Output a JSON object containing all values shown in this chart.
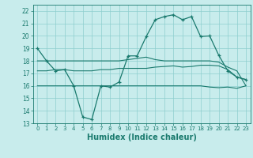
{
  "xlabel": "Humidex (Indice chaleur)",
  "bg_color": "#c8ecec",
  "line_color": "#1a7a6e",
  "grid_color": "#8ecece",
  "x_ticks": [
    0,
    1,
    2,
    3,
    4,
    5,
    6,
    7,
    8,
    9,
    10,
    11,
    12,
    13,
    14,
    15,
    16,
    17,
    18,
    19,
    20,
    21,
    22,
    23
  ],
  "y_ticks": [
    13,
    14,
    15,
    16,
    17,
    18,
    19,
    20,
    21,
    22
  ],
  "ylim": [
    13,
    22.5
  ],
  "xlim": [
    -0.5,
    23.5
  ],
  "line1": [
    19,
    18,
    17.2,
    17.3,
    16.0,
    13.5,
    13.3,
    16.0,
    15.9,
    16.3,
    18.4,
    18.4,
    19.95,
    21.3,
    21.55,
    21.7,
    21.3,
    21.55,
    19.95,
    20.0,
    18.45,
    17.2,
    16.7,
    16.5
  ],
  "line2": [
    18,
    18,
    18,
    18,
    18,
    18,
    18,
    18,
    18,
    18,
    18.1,
    18.2,
    18.3,
    18.1,
    18.0,
    18.0,
    18.0,
    18.0,
    18.0,
    18.0,
    17.9,
    17.5,
    17.2,
    16.0
  ],
  "line3": [
    17.2,
    17.2,
    17.3,
    17.3,
    17.2,
    17.2,
    17.2,
    17.3,
    17.3,
    17.4,
    17.4,
    17.4,
    17.4,
    17.5,
    17.55,
    17.6,
    17.5,
    17.55,
    17.65,
    17.65,
    17.6,
    17.3,
    16.7,
    16.5
  ],
  "line4": [
    16.0,
    16.0,
    16.0,
    16.0,
    16.0,
    16.0,
    16.0,
    16.0,
    16.0,
    16.0,
    16.0,
    16.0,
    16.0,
    16.0,
    16.0,
    16.0,
    16.0,
    16.0,
    16.0,
    15.9,
    15.85,
    15.9,
    15.8,
    16.0
  ]
}
